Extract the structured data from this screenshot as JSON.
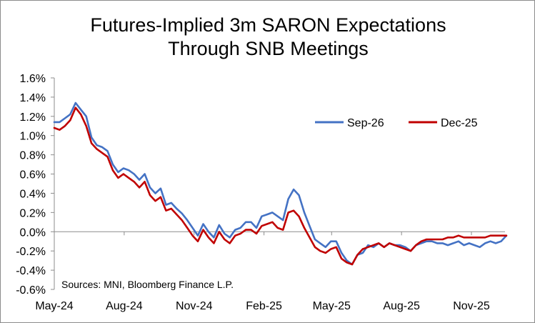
{
  "chart_data": {
    "type": "line",
    "title": "Futures-Implied 3m SARON Expectations",
    "subtitle": "Through SNB Meetings",
    "source": "Sources: MNI, Bloomberg Finance L.P.",
    "xlabel": "",
    "ylabel": "",
    "ylim": [
      -0.6,
      1.6
    ],
    "y_ticks": [
      "1.6%",
      "1.4%",
      "1.2%",
      "1.0%",
      "0.8%",
      "0.6%",
      "0.4%",
      "0.2%",
      "0.0%",
      "-0.2%",
      "-0.4%",
      "-0.6%"
    ],
    "x_ticks": [
      "May-24",
      "Aug-24",
      "Nov-24",
      "Feb-25",
      "May-25",
      "Aug-25",
      "Nov-25"
    ],
    "legend_position": "top-right",
    "grid": false,
    "series": [
      {
        "name": "Sep-26",
        "color": "#4472C4",
        "x": [
          "2024-05-01",
          "2024-05-08",
          "2024-05-15",
          "2024-05-22",
          "2024-05-29",
          "2024-06-05",
          "2024-06-12",
          "2024-06-19",
          "2024-06-26",
          "2024-07-03",
          "2024-07-10",
          "2024-07-17",
          "2024-07-24",
          "2024-07-31",
          "2024-08-07",
          "2024-08-14",
          "2024-08-21",
          "2024-08-28",
          "2024-09-04",
          "2024-09-11",
          "2024-09-18",
          "2024-09-25",
          "2024-10-02",
          "2024-10-09",
          "2024-10-16",
          "2024-10-23",
          "2024-10-30",
          "2024-11-06",
          "2024-11-13",
          "2024-11-20",
          "2024-11-27",
          "2024-12-04",
          "2024-12-11",
          "2024-12-18",
          "2024-12-25",
          "2025-01-01",
          "2025-01-08",
          "2025-01-15",
          "2025-01-22",
          "2025-01-29",
          "2025-02-05",
          "2025-02-12",
          "2025-02-19",
          "2025-02-26",
          "2025-03-05",
          "2025-03-12",
          "2025-03-19",
          "2025-03-26",
          "2025-04-02",
          "2025-04-09",
          "2025-04-16",
          "2025-04-23",
          "2025-04-30",
          "2025-05-07",
          "2025-05-14",
          "2025-05-21",
          "2025-05-28",
          "2025-06-04",
          "2025-06-11",
          "2025-06-18",
          "2025-06-25",
          "2025-07-02",
          "2025-07-09",
          "2025-07-16",
          "2025-07-23",
          "2025-07-30",
          "2025-08-06",
          "2025-08-13",
          "2025-08-20",
          "2025-08-27",
          "2025-09-03",
          "2025-09-10",
          "2025-09-17",
          "2025-09-24",
          "2025-10-01",
          "2025-10-08",
          "2025-10-15",
          "2025-10-22",
          "2025-10-29",
          "2025-11-05",
          "2025-11-12",
          "2025-11-19",
          "2025-11-26",
          "2025-12-03",
          "2025-12-10",
          "2025-12-17"
        ],
        "values": [
          1.14,
          1.14,
          1.18,
          1.22,
          1.34,
          1.27,
          1.2,
          0.98,
          0.9,
          0.88,
          0.84,
          0.7,
          0.62,
          0.66,
          0.64,
          0.6,
          0.54,
          0.6,
          0.46,
          0.4,
          0.45,
          0.28,
          0.3,
          0.24,
          0.19,
          0.12,
          0.04,
          -0.04,
          0.08,
          0.0,
          -0.06,
          0.07,
          -0.02,
          -0.06,
          0.02,
          0.04,
          0.1,
          0.1,
          0.04,
          0.16,
          0.18,
          0.2,
          0.16,
          0.12,
          0.34,
          0.44,
          0.38,
          0.2,
          0.06,
          -0.08,
          -0.12,
          -0.16,
          -0.1,
          -0.1,
          -0.22,
          -0.3,
          -0.34,
          -0.24,
          -0.22,
          -0.14,
          -0.16,
          -0.12,
          -0.16,
          -0.12,
          -0.14,
          -0.14,
          -0.16,
          -0.2,
          -0.14,
          -0.12,
          -0.1,
          -0.1,
          -0.12,
          -0.12,
          -0.14,
          -0.12,
          -0.1,
          -0.14,
          -0.12,
          -0.14,
          -0.16,
          -0.12,
          -0.1,
          -0.12,
          -0.1,
          -0.04
        ]
      },
      {
        "name": "Dec-25",
        "color": "#C00000",
        "x": [
          "2024-05-01",
          "2024-05-08",
          "2024-05-15",
          "2024-05-22",
          "2024-05-29",
          "2024-06-05",
          "2024-06-12",
          "2024-06-19",
          "2024-06-26",
          "2024-07-03",
          "2024-07-10",
          "2024-07-17",
          "2024-07-24",
          "2024-07-31",
          "2024-08-07",
          "2024-08-14",
          "2024-08-21",
          "2024-08-28",
          "2024-09-04",
          "2024-09-11",
          "2024-09-18",
          "2024-09-25",
          "2024-10-02",
          "2024-10-09",
          "2024-10-16",
          "2024-10-23",
          "2024-10-30",
          "2024-11-06",
          "2024-11-13",
          "2024-11-20",
          "2024-11-27",
          "2024-12-04",
          "2024-12-11",
          "2024-12-18",
          "2024-12-25",
          "2025-01-01",
          "2025-01-08",
          "2025-01-15",
          "2025-01-22",
          "2025-01-29",
          "2025-02-05",
          "2025-02-12",
          "2025-02-19",
          "2025-02-26",
          "2025-03-05",
          "2025-03-12",
          "2025-03-19",
          "2025-03-26",
          "2025-04-02",
          "2025-04-09",
          "2025-04-16",
          "2025-04-23",
          "2025-04-30",
          "2025-05-07",
          "2025-05-14",
          "2025-05-21",
          "2025-05-28",
          "2025-06-04",
          "2025-06-11",
          "2025-06-18",
          "2025-06-25",
          "2025-07-02",
          "2025-07-09",
          "2025-07-16",
          "2025-07-23",
          "2025-07-30",
          "2025-08-06",
          "2025-08-13",
          "2025-08-20",
          "2025-08-27",
          "2025-09-03",
          "2025-09-10",
          "2025-09-17",
          "2025-09-24",
          "2025-10-01",
          "2025-10-08",
          "2025-10-15",
          "2025-10-22",
          "2025-10-29",
          "2025-11-05",
          "2025-11-12",
          "2025-11-19",
          "2025-11-26",
          "2025-12-03",
          "2025-12-10",
          "2025-12-17"
        ],
        "values": [
          1.08,
          1.06,
          1.1,
          1.16,
          1.29,
          1.22,
          1.1,
          0.92,
          0.86,
          0.82,
          0.78,
          0.64,
          0.56,
          0.6,
          0.56,
          0.52,
          0.46,
          0.52,
          0.38,
          0.32,
          0.36,
          0.22,
          0.24,
          0.18,
          0.12,
          0.04,
          -0.04,
          -0.1,
          0.02,
          -0.06,
          -0.12,
          0.0,
          -0.08,
          -0.12,
          -0.04,
          -0.02,
          0.02,
          0.02,
          -0.02,
          0.06,
          0.08,
          0.1,
          0.04,
          0.02,
          0.2,
          0.22,
          0.16,
          0.04,
          -0.06,
          -0.16,
          -0.2,
          -0.22,
          -0.18,
          -0.16,
          -0.28,
          -0.32,
          -0.34,
          -0.24,
          -0.18,
          -0.16,
          -0.14,
          -0.12,
          -0.16,
          -0.12,
          -0.14,
          -0.16,
          -0.18,
          -0.2,
          -0.14,
          -0.1,
          -0.08,
          -0.08,
          -0.08,
          -0.08,
          -0.06,
          -0.06,
          -0.04,
          -0.06,
          -0.06,
          -0.06,
          -0.06,
          -0.06,
          -0.04,
          -0.04,
          -0.04,
          -0.04
        ]
      }
    ]
  }
}
